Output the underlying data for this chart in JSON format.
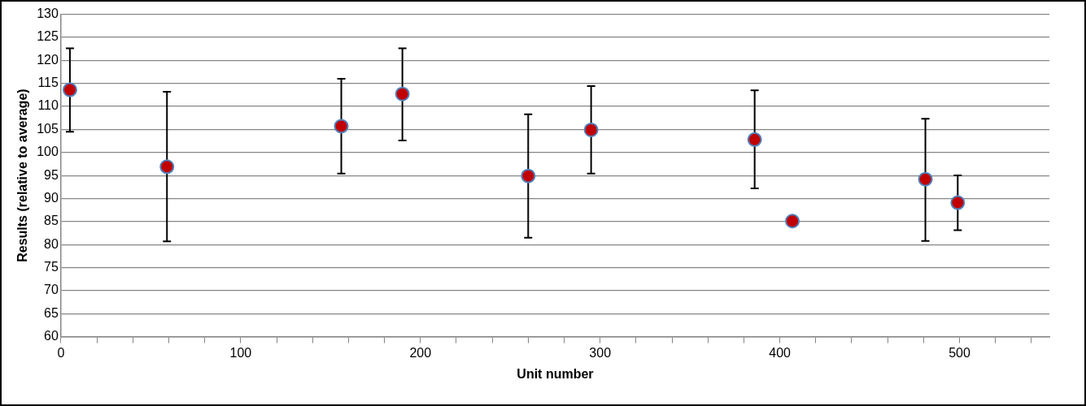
{
  "chart_data": {
    "type": "scatter",
    "xlabel": "Unit number",
    "ylabel": "Results (relative to average)",
    "x": [
      5,
      59,
      156,
      190,
      260,
      295,
      386,
      407,
      481,
      499
    ],
    "series": [
      {
        "color": "#c00000",
        "values": [
          113.6,
          96.9,
          105.7,
          112.7,
          94.9,
          104.9,
          102.8,
          85.1,
          94.2,
          89.1
        ],
        "errors": [
          [
            104.5,
            122.6
          ],
          [
            80.7,
            113.2
          ],
          [
            95.4,
            116.0
          ],
          [
            102.6,
            122.6
          ],
          [
            81.5,
            108.3
          ],
          [
            95.4,
            114.4
          ],
          [
            92.2,
            113.5
          ],
          null,
          [
            80.8,
            107.3
          ],
          [
            83.1,
            95.0
          ]
        ]
      }
    ],
    "xlim": [
      0,
      550
    ],
    "xticks": [
      0,
      {
        "value": 20,
        "label": null
      },
      {
        "value": 40,
        "label": null
      },
      {
        "value": 60,
        "label": null
      },
      {
        "value": 80,
        "label": null
      },
      100,
      {
        "value": 120,
        "label": null
      },
      {
        "value": 140,
        "label": null
      },
      {
        "value": 160,
        "label": null
      },
      {
        "value": 180,
        "label": null
      },
      200,
      {
        "value": 220,
        "label": null
      },
      {
        "value": 240,
        "label": null
      },
      {
        "value": 260,
        "label": null
      },
      {
        "value": 280,
        "label": null
      },
      300,
      {
        "value": 320,
        "label": null
      },
      {
        "value": 340,
        "label": null
      },
      {
        "value": 360,
        "label": null
      },
      {
        "value": 380,
        "label": null
      },
      400,
      {
        "value": 420,
        "label": null
      },
      {
        "value": 440,
        "label": null
      },
      {
        "value": 460,
        "label": null
      },
      {
        "value": 480,
        "label": null
      },
      500,
      {
        "value": 520,
        "label": null
      },
      {
        "value": 540,
        "label": null
      }
    ],
    "ylim": [
      60,
      130
    ],
    "yticks": [
      60,
      65,
      70,
      75,
      80,
      85,
      90,
      95,
      100,
      105,
      110,
      115,
      120,
      125,
      130
    ],
    "grid": "y",
    "marker": "circle",
    "legend": false
  }
}
